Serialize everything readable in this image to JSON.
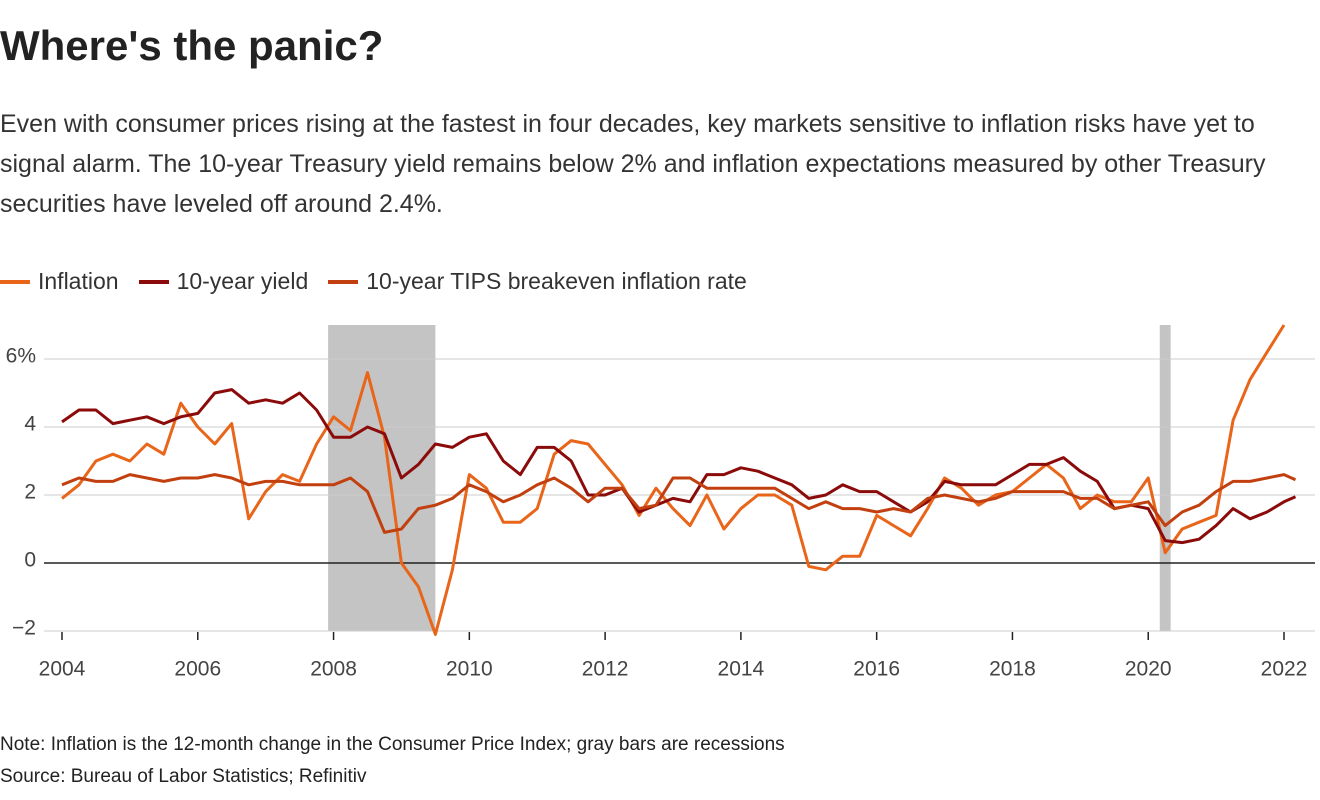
{
  "chart_data": {
    "type": "line",
    "title": "Where's the panic?",
    "subtitle": "Even with consumer prices rising at the fastest in four decades, key markets sensitive to inflation risks have yet to signal alarm. The 10-year Treasury yield remains below 2% and inflation expectations measured by other Treasury securities have leveled off around 2.4%.",
    "notes": [
      "Note: Inflation is the 12-month change in the Consumer Price Index; gray bars are recessions",
      "Source: Bureau of Labor Statistics; Refinitiv"
    ],
    "x": [
      2004,
      2004.25,
      2004.5,
      2004.75,
      2005,
      2005.25,
      2005.5,
      2005.75,
      2006,
      2006.25,
      2006.5,
      2006.75,
      2007,
      2007.25,
      2007.5,
      2007.75,
      2008,
      2008.25,
      2008.5,
      2008.75,
      2009,
      2009.25,
      2009.5,
      2009.75,
      2010,
      2010.25,
      2010.5,
      2010.75,
      2011,
      2011.25,
      2011.5,
      2011.75,
      2012,
      2012.25,
      2012.5,
      2012.75,
      2013,
      2013.25,
      2013.5,
      2013.75,
      2014,
      2014.25,
      2014.5,
      2014.75,
      2015,
      2015.25,
      2015.5,
      2015.75,
      2016,
      2016.25,
      2016.5,
      2016.75,
      2017,
      2017.25,
      2017.5,
      2017.75,
      2018,
      2018.25,
      2018.5,
      2018.75,
      2019,
      2019.25,
      2019.5,
      2019.75,
      2020,
      2020.25,
      2020.5,
      2020.75,
      2021,
      2021.25,
      2021.5,
      2021.75,
      2022,
      2022.17
    ],
    "series": [
      {
        "name": "Inflation",
        "color": "#e8651a",
        "values": [
          1.9,
          2.3,
          3.0,
          3.2,
          3.0,
          3.5,
          3.2,
          4.7,
          4.0,
          3.5,
          4.1,
          1.3,
          2.1,
          2.6,
          2.4,
          3.5,
          4.3,
          3.9,
          5.6,
          3.7,
          0.0,
          -0.7,
          -2.1,
          -0.2,
          2.6,
          2.2,
          1.2,
          1.2,
          1.6,
          3.2,
          3.6,
          3.5,
          2.9,
          2.3,
          1.4,
          2.2,
          1.6,
          1.1,
          2.0,
          1.0,
          1.6,
          2.0,
          2.0,
          1.7,
          -0.1,
          -0.2,
          0.2,
          0.2,
          1.4,
          1.1,
          0.8,
          1.6,
          2.5,
          2.2,
          1.7,
          2.0,
          2.1,
          2.5,
          2.9,
          2.5,
          1.6,
          2.0,
          1.8,
          1.8,
          2.5,
          0.3,
          1.0,
          1.2,
          1.4,
          4.2,
          5.4,
          6.2,
          7.0,
          null
        ]
      },
      {
        "name": "10-year yield",
        "color": "#8b0a0a",
        "values": [
          4.15,
          4.5,
          4.5,
          4.1,
          4.2,
          4.3,
          4.1,
          4.3,
          4.4,
          5.0,
          5.1,
          4.7,
          4.8,
          4.7,
          5.0,
          4.5,
          3.7,
          3.7,
          4.0,
          3.8,
          2.5,
          2.9,
          3.5,
          3.4,
          3.7,
          3.8,
          3.0,
          2.6,
          3.4,
          3.4,
          3.0,
          2.0,
          2.0,
          2.2,
          1.5,
          1.7,
          1.9,
          1.8,
          2.6,
          2.6,
          2.8,
          2.7,
          2.5,
          2.3,
          1.9,
          2.0,
          2.3,
          2.1,
          2.1,
          1.8,
          1.5,
          1.8,
          2.4,
          2.3,
          2.3,
          2.3,
          2.6,
          2.9,
          2.9,
          3.1,
          2.7,
          2.4,
          1.6,
          1.7,
          1.6,
          0.66,
          0.6,
          0.7,
          1.1,
          1.6,
          1.3,
          1.5,
          1.8,
          1.95
        ]
      },
      {
        "name": "10-year TIPS breakeven inflation rate",
        "color": "#c2400f",
        "values": [
          2.3,
          2.5,
          2.4,
          2.4,
          2.6,
          2.5,
          2.4,
          2.5,
          2.5,
          2.6,
          2.5,
          2.3,
          2.4,
          2.4,
          2.3,
          2.3,
          2.3,
          2.5,
          2.1,
          0.9,
          1.0,
          1.6,
          1.7,
          1.9,
          2.3,
          2.1,
          1.8,
          2.0,
          2.3,
          2.5,
          2.2,
          1.8,
          2.2,
          2.2,
          1.6,
          1.7,
          2.5,
          2.5,
          2.2,
          2.2,
          2.2,
          2.2,
          2.2,
          1.9,
          1.6,
          1.8,
          1.6,
          1.6,
          1.5,
          1.6,
          1.5,
          1.9,
          2.0,
          1.9,
          1.8,
          1.9,
          2.1,
          2.1,
          2.1,
          2.1,
          1.9,
          1.9,
          1.6,
          1.7,
          1.8,
          1.1,
          1.5,
          1.7,
          2.1,
          2.4,
          2.4,
          2.5,
          2.6,
          2.45
        ]
      }
    ],
    "recessions": [
      [
        2007.92,
        2009.5
      ],
      [
        2020.17,
        2020.33
      ]
    ],
    "recession_color": "#c4c4c4",
    "xlim": [
      2004,
      2022
    ],
    "xticks": [
      2004,
      2006,
      2008,
      2010,
      2012,
      2014,
      2016,
      2018,
      2020,
      2022
    ],
    "ylim": [
      -2,
      7
    ],
    "yticks": [
      {
        "value": -2,
        "label": "−2"
      },
      0,
      2,
      4,
      {
        "value": 6,
        "label": "6%"
      }
    ],
    "grid": true
  }
}
